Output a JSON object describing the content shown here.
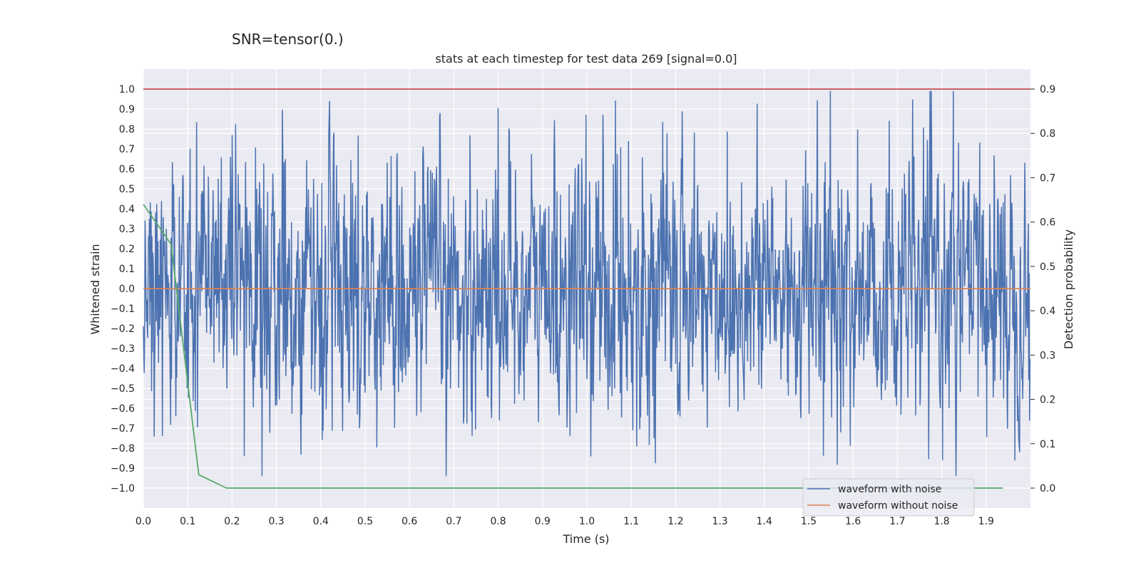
{
  "colors": {
    "background": "#eaeaf2",
    "grid": "#ffffff",
    "noisy": "#4c72b0",
    "clean": "#dd8452",
    "probability": "#55a868",
    "threshold": "#c44e52"
  },
  "chart_data": {
    "type": "line",
    "suptitle": "SNR=tensor(0.)",
    "title": "stats at each timestep for test data 269 [signal=0.0]",
    "xlabel": "Time (s)",
    "ylabel": "Whitened strain",
    "y2label": "Detection probability",
    "xlim": [
      0.0,
      2.0
    ],
    "ylim": [
      -1.1,
      1.1
    ],
    "y2lim": [
      -0.045,
      0.945
    ],
    "x_ticks": [
      "0.0",
      "0.1",
      "0.2",
      "0.3",
      "0.4",
      "0.5",
      "0.6",
      "0.7",
      "0.8",
      "0.9",
      "1.0",
      "1.1",
      "1.2",
      "1.3",
      "1.4",
      "1.5",
      "1.6",
      "1.7",
      "1.8",
      "1.9"
    ],
    "y_ticks": [
      "1.0",
      "0.9",
      "0.8",
      "0.7",
      "0.6",
      "0.5",
      "0.4",
      "0.3",
      "0.2",
      "0.1",
      "0.0",
      "−0.1",
      "−0.2",
      "−0.3",
      "−0.4",
      "−0.5",
      "−0.6",
      "−0.7",
      "−0.8",
      "−0.9",
      "−1.0"
    ],
    "y2_ticks": [
      "0.9",
      "0.8",
      "0.7",
      "0.6",
      "0.5",
      "0.4",
      "0.3",
      "0.2",
      "0.1",
      "0.0"
    ],
    "legend": {
      "location": "lower-right",
      "entries": [
        "waveform with noise",
        "waveform without noise"
      ]
    },
    "series": [
      {
        "name": "waveform with noise",
        "axis": "left",
        "kind": "noise",
        "n_points": 2048,
        "approx_std": 0.33,
        "peak_max": 0.99,
        "peak_min": -0.94
      },
      {
        "name": "waveform without noise",
        "axis": "left",
        "x": [
          0.0,
          2.0
        ],
        "y": [
          0.0,
          0.0
        ]
      },
      {
        "name": "detection probability",
        "axis": "right",
        "x": [
          0.0,
          0.0625,
          0.125,
          0.1875,
          0.25,
          0.5,
          1.0,
          1.5,
          1.9375
        ],
        "y": [
          0.64,
          0.55,
          0.03,
          0.0,
          0.0,
          0.0,
          0.0,
          0.0,
          0.0
        ]
      },
      {
        "name": "threshold",
        "axis": "right",
        "x": [
          0.0,
          2.0
        ],
        "y": [
          0.9,
          0.9
        ]
      }
    ]
  }
}
